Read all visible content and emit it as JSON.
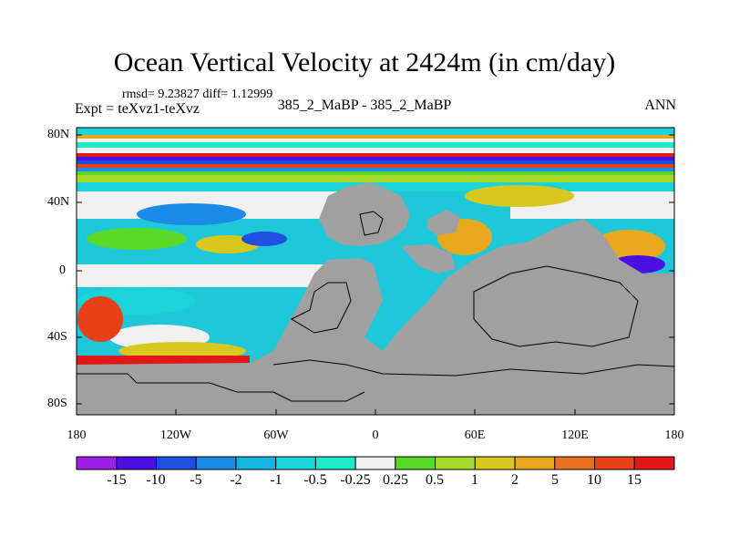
{
  "title": "Ocean Vertical Velocity at 2424m (in cm/day)",
  "stats": "rmsd= 9.23827 diff= 1.12999",
  "expt": "Expt = teXvz1-teXvz",
  "cases": "385_2_MaBP - 385_2_MaBP",
  "season": "ANN",
  "y_axis": {
    "ticks": [
      "80N",
      "40N",
      "0",
      "40S",
      "80S"
    ]
  },
  "x_axis": {
    "ticks": [
      "180",
      "120W",
      "60W",
      "0",
      "60E",
      "120E",
      "180"
    ]
  },
  "colorbar": {
    "labels": [
      "-15",
      "-10",
      "-5",
      "-2",
      "-1",
      "-0.5",
      "-0.25",
      "0.25",
      "0.5",
      "1",
      "2",
      "5",
      "10",
      "15"
    ],
    "colors": [
      "#9b1fe8",
      "#4a10e0",
      "#1e4fe0",
      "#1c8ae8",
      "#17b4e0",
      "#1ad4d8",
      "#20e8c8",
      "#f0f0f0",
      "#5ad828",
      "#a8d82a",
      "#d8c81e",
      "#e8a81e",
      "#e8701e",
      "#e84018",
      "#e01818"
    ]
  },
  "land_color": "#a0a0a0"
}
